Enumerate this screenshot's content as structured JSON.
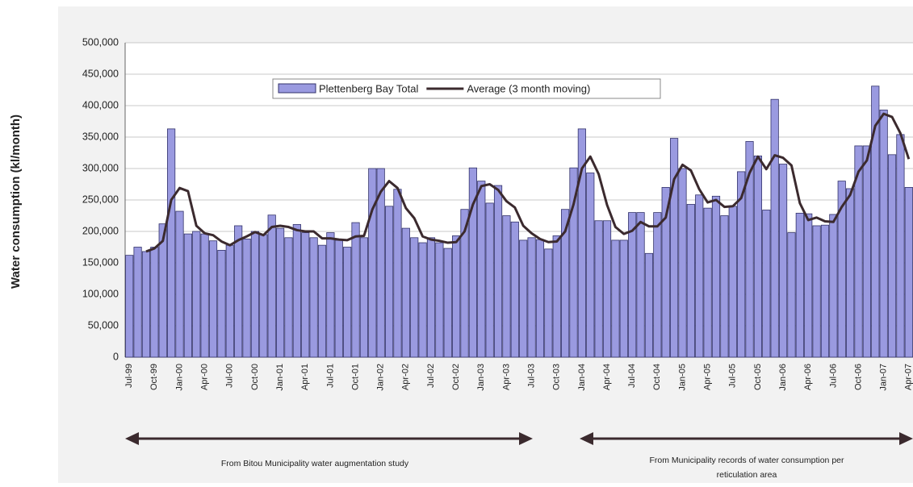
{
  "chart_data": {
    "type": "bar",
    "y_label": "Water consumption (kl/month)",
    "categories": [
      "Jul-99",
      null,
      null,
      "Oct-99",
      null,
      null,
      "Jan-00",
      null,
      null,
      "Apr-00",
      null,
      null,
      "Jul-00",
      null,
      null,
      "Oct-00",
      null,
      null,
      "Jan-01",
      null,
      null,
      "Apr-01",
      null,
      null,
      "Jul-01",
      null,
      null,
      "Oct-01",
      null,
      null,
      "Jan-02",
      null,
      null,
      "Apr-02",
      null,
      null,
      "Jul-02",
      null,
      null,
      "Oct-02",
      null,
      null,
      "Jan-03",
      null,
      null,
      "Apr-03",
      null,
      null,
      "Jul-03",
      null,
      null,
      "Oct-03",
      null,
      null,
      "Jan-04",
      null,
      null,
      "Apr-04",
      null,
      null,
      "Jul-04",
      null,
      null,
      "Oct-04",
      null,
      null,
      "Jan-05",
      null,
      null,
      "Apr-05",
      null,
      null,
      "Jul-05",
      null,
      null,
      "Oct-05",
      null,
      null,
      "Jan-06",
      null,
      null,
      "Apr-06",
      null,
      null,
      "Jul-06",
      null,
      null,
      "Oct-06",
      null,
      null,
      "Jan-07",
      null,
      null,
      "Apr-07"
    ],
    "series": [
      {
        "name": "Plettenberg Bay Total",
        "type": "bar",
        "color": "#9a9ae0",
        "values": [
          162000,
          175000,
          168000,
          175000,
          212000,
          363000,
          232000,
          196000,
          200000,
          196000,
          185000,
          170000,
          178000,
          209000,
          188000,
          200000,
          195000,
          226000,
          205000,
          190000,
          211000,
          198000,
          190000,
          178000,
          198000,
          186000,
          175000,
          214000,
          190000,
          300000,
          300000,
          240000,
          267000,
          205000,
          190000,
          182000,
          190000,
          182000,
          173000,
          193000,
          235000,
          301000,
          280000,
          245000,
          273000,
          225000,
          215000,
          186000,
          190000,
          187000,
          172000,
          193000,
          235000,
          301000,
          363000,
          293000,
          217000,
          217000,
          186000,
          186000,
          230000,
          230000,
          165000,
          230000,
          270000,
          348000,
          300000,
          243000,
          258000,
          237000,
          256000,
          225000,
          240000,
          295000,
          343000,
          320000,
          234000,
          410000,
          307000,
          198000,
          229000,
          228000,
          209000,
          210000,
          227000,
          280000,
          268000,
          336000,
          336000,
          431000,
          393000,
          322000,
          354000,
          270000
        ]
      },
      {
        "name": "Average (3 month moving)",
        "type": "line",
        "color": "#3b2a2e",
        "values": [
          null,
          null,
          168000,
          173000,
          185000,
          250000,
          269000,
          264000,
          209000,
          197000,
          194000,
          184000,
          178000,
          186000,
          192000,
          199000,
          194000,
          207000,
          209000,
          207000,
          202000,
          200000,
          200000,
          189000,
          189000,
          187000,
          186000,
          192000,
          193000,
          235000,
          263000,
          280000,
          269000,
          237000,
          221000,
          192000,
          187000,
          185000,
          182000,
          183000,
          200000,
          243000,
          272000,
          275000,
          266000,
          248000,
          238000,
          209000,
          197000,
          188000,
          183000,
          184000,
          200000,
          243000,
          300000,
          319000,
          291000,
          242000,
          207000,
          196000,
          201000,
          215000,
          208000,
          208000,
          222000,
          283000,
          306000,
          297000,
          267000,
          246000,
          250000,
          239000,
          240000,
          253000,
          293000,
          319000,
          299000,
          321000,
          317000,
          305000,
          245000,
          218000,
          222000,
          216000,
          215000,
          239000,
          258000,
          295000,
          313000,
          368000,
          387000,
          382000,
          356000,
          315000
        ]
      }
    ],
    "ylim": [
      0,
      500000
    ],
    "yticks": [
      0,
      {
        "value": 50000,
        "label": "50,000"
      },
      {
        "value": 100000,
        "label": "100,000"
      },
      {
        "value": 150000,
        "label": "150,000"
      },
      {
        "value": 200000,
        "label": "200,000"
      },
      {
        "value": 250000,
        "label": "250,000"
      },
      {
        "value": 300000,
        "label": "300,000"
      },
      {
        "value": 350000,
        "label": "350,000"
      },
      {
        "value": 400000,
        "label": "400,000"
      },
      {
        "value": 450000,
        "label": "450,000"
      },
      {
        "value": 500000,
        "label": "500,000"
      }
    ],
    "grid": true,
    "legend": "top",
    "annotations": [
      "From Bitou Municipality water augmentation study",
      "From Municipality records of water consumption per",
      "reticulation area"
    ]
  }
}
